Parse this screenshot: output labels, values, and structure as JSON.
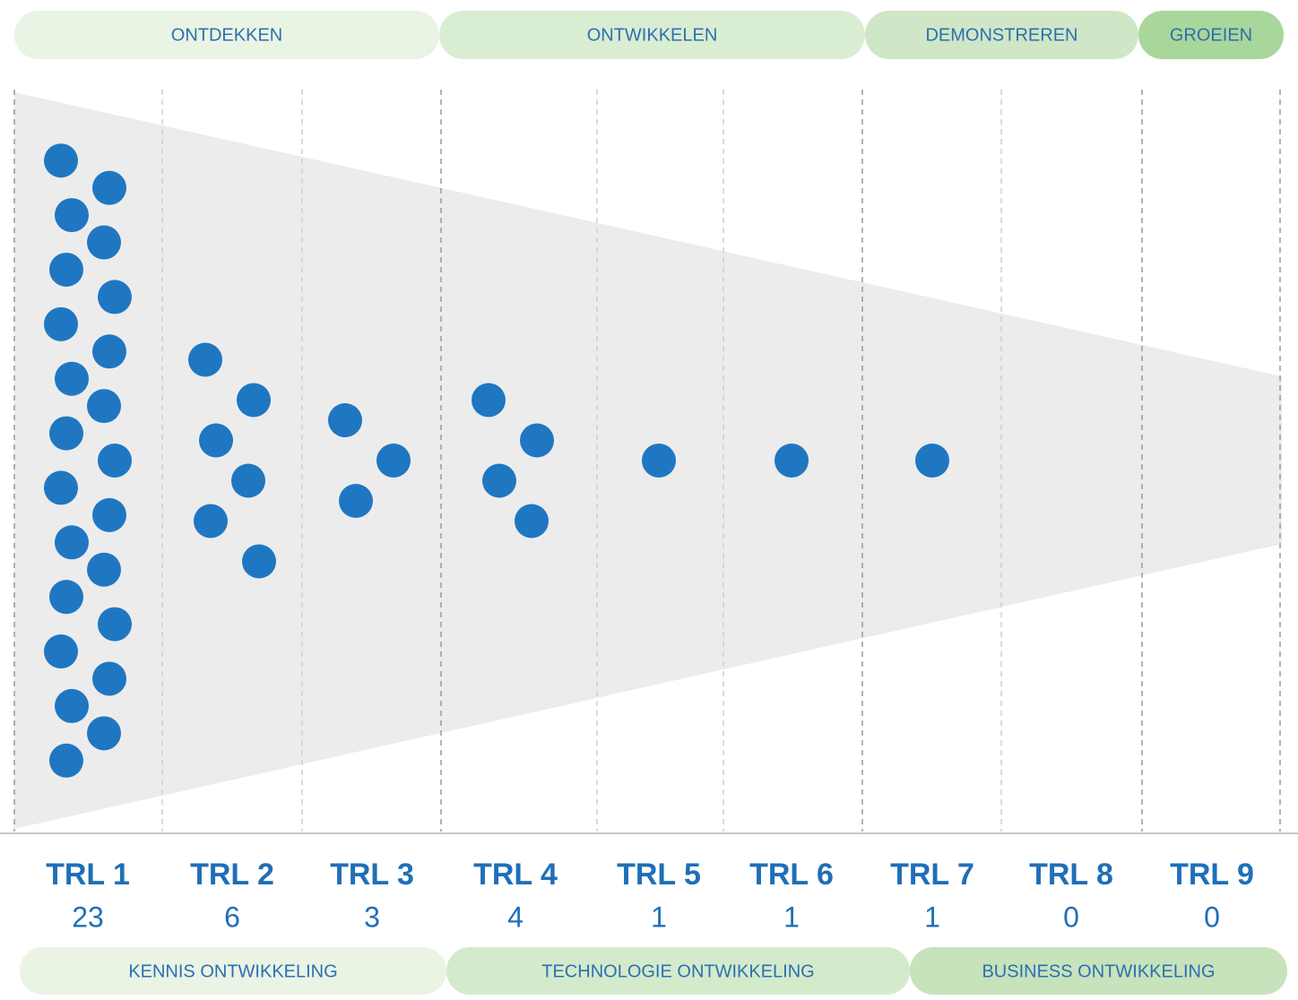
{
  "chart_data": {
    "type": "trl-funnel",
    "phases_top": [
      "ONTDEKKEN",
      "ONTWIKKELEN",
      "DEMONSTREREN",
      "GROEIEN"
    ],
    "categories": [
      "TRL 1",
      "TRL 2",
      "TRL 3",
      "TRL 4",
      "TRL 5",
      "TRL 6",
      "TRL 7",
      "TRL 8",
      "TRL 9"
    ],
    "values": [
      23,
      6,
      3,
      4,
      1,
      1,
      1,
      0,
      0
    ],
    "color": "#1f77c2",
    "phases_bottom": [
      "KENNIS ONTWIKKELING",
      "TECHNOLOGIE ONTWIKKELING",
      "BUSINESS ONTWIKKELING"
    ]
  }
}
